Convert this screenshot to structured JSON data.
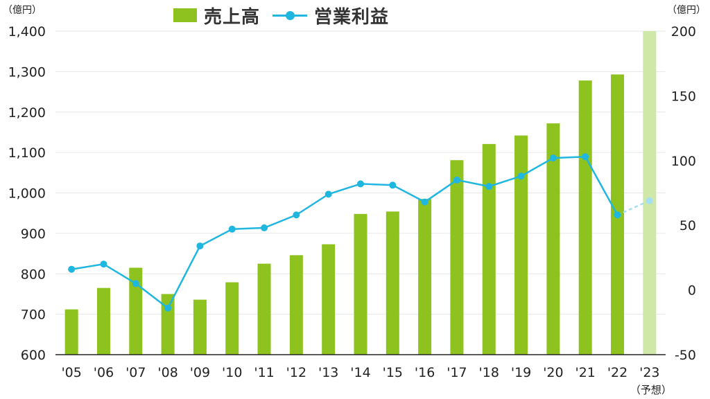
{
  "units": {
    "left": "（億円）",
    "right": "（億円）"
  },
  "legend": {
    "bar_label": "売上高",
    "line_label": "営業利益"
  },
  "colors": {
    "bar": "#8dc21f",
    "bar_forecast": "#cfe8a8",
    "line": "#1fb6e0",
    "line_forecast": "#a6dff2",
    "grid": "#e6e6e6",
    "axis": "#222222"
  },
  "chart_data": {
    "type": "bar",
    "categories": [
      "'05",
      "'06",
      "'07",
      "'08",
      "'09",
      "'10",
      "'11",
      "'12",
      "'13",
      "'14",
      "'15",
      "'16",
      "'17",
      "'18",
      "'19",
      "'20",
      "'21",
      "'22",
      "'23"
    ],
    "category_note": "（予想）",
    "series": [
      {
        "name": "売上高",
        "type": "bar",
        "axis": "left",
        "values": [
          712,
          765,
          815,
          750,
          736,
          779,
          825,
          846,
          873,
          948,
          954,
          985,
          1081,
          1121,
          1142,
          1172,
          1278,
          1293,
          1400
        ],
        "forecast_from_index": 18
      },
      {
        "name": "営業利益",
        "type": "line",
        "axis": "right",
        "values": [
          16,
          20,
          5,
          -14,
          34,
          47,
          48,
          58,
          74,
          82,
          81,
          68,
          85,
          80,
          88,
          102,
          103,
          58,
          69
        ],
        "forecast_from_index": 18
      }
    ],
    "y_left": {
      "min": 600,
      "max": 1400,
      "ticks": [
        "600",
        "700",
        "800",
        "900",
        "1,000",
        "1,100",
        "1,200",
        "1,300",
        "1,400"
      ]
    },
    "y_right": {
      "min": -50,
      "max": 200,
      "ticks": [
        "-50",
        "0",
        "50",
        "100",
        "150",
        "200"
      ]
    },
    "grid": true,
    "legend_position": "top"
  }
}
